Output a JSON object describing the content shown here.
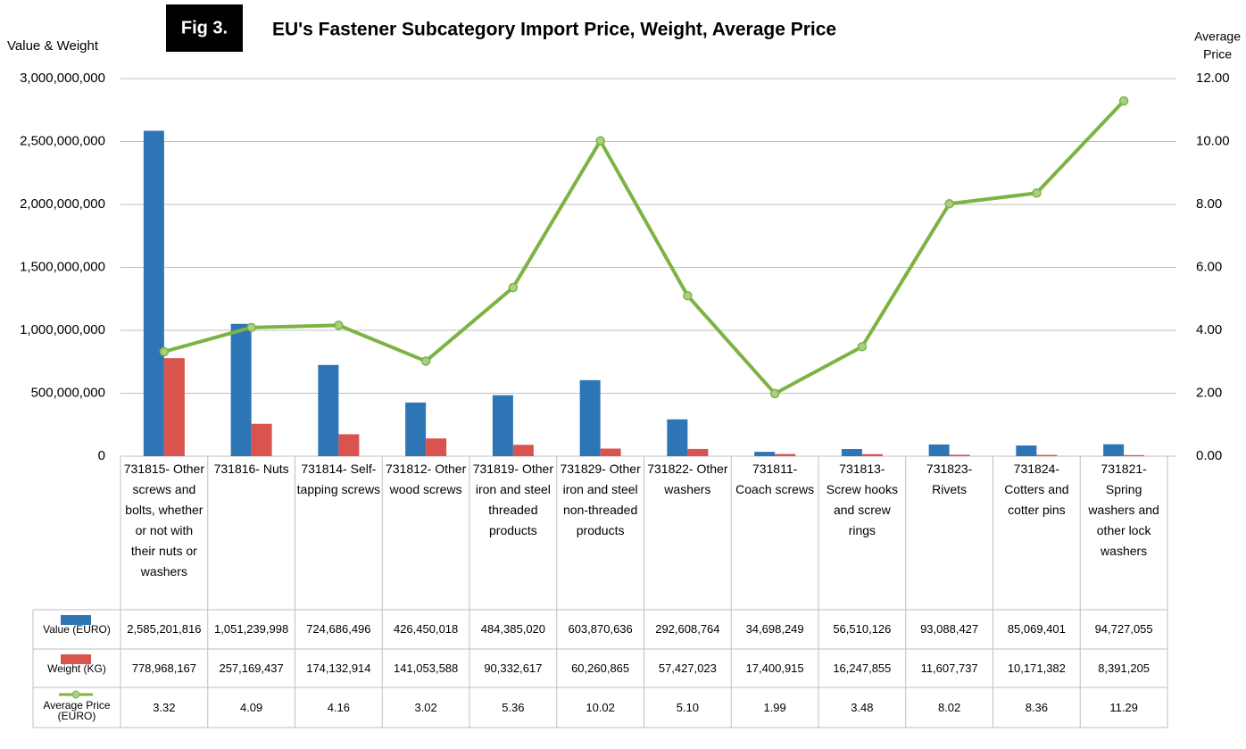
{
  "chart_data": {
    "type": "bar-line",
    "figure_label": "Fig 3.",
    "title": "EU's Fastener Subcategory Import Price, Weight, Average Price",
    "ylabel": "Value & Weight",
    "y2label": "Average Price",
    "categories": [
      "731815- Other screws and bolts, whether or not with their nuts or washers",
      "731816- Nuts",
      "731814- Self-tapping screws",
      "731812- Other wood screws",
      "731819- Other iron and steel threaded products",
      "731829- Other iron and steel non-threaded products",
      "731822- Other washers",
      "731811- Coach screws",
      "731813- Screw hooks and screw rings",
      "731823- Rivets",
      "731824- Cotters and cotter pins",
      "731821- Spring washers and other lock washers"
    ],
    "series": [
      {
        "name": "Value (EURO)",
        "color": "#2e75b6",
        "type": "bar",
        "values": [
          2585201816,
          1051239998,
          724686496,
          426450018,
          484385020,
          603870636,
          292608764,
          34698249,
          56510126,
          93088427,
          85069401,
          94727055
        ],
        "value_labels": [
          "2,585,201,816",
          "1,051,239,998",
          "724,686,496",
          "426,450,018",
          "484,385,020",
          "603,870,636",
          "292,608,764",
          "34,698,249",
          "56,510,126",
          "93,088,427",
          "85,069,401",
          "94,727,055"
        ]
      },
      {
        "name": "Weight (KG)",
        "color": "#d9534f",
        "type": "bar",
        "values": [
          778968167,
          257169437,
          174132914,
          141053588,
          90332617,
          60260865,
          57427023,
          17400915,
          16247855,
          11607737,
          10171382,
          8391205
        ],
        "value_labels": [
          "778,968,167",
          "257,169,437",
          "174,132,914",
          "141,053,588",
          "90,332,617",
          "60,260,865",
          "57,427,023",
          "17,400,915",
          "16,247,855",
          "11,607,737",
          "10,171,382",
          "8,391,205"
        ]
      },
      {
        "name": "Average Price (EURO)",
        "color": "#7cb342",
        "type": "line",
        "axis": "y2",
        "values": [
          3.32,
          4.09,
          4.16,
          3.02,
          5.36,
          10.02,
          5.1,
          1.99,
          3.48,
          8.02,
          8.36,
          11.29
        ],
        "value_labels": [
          "3.32",
          "4.09",
          "4.16",
          "3.02",
          "5.36",
          "10.02",
          "5.10",
          "1.99",
          "3.48",
          "8.02",
          "8.36",
          "11.29"
        ]
      }
    ],
    "ylim": [
      0,
      3000000000
    ],
    "yticks": [
      0,
      {
        "value": 500000000,
        "label": "500,000,000"
      },
      {
        "value": 1000000000,
        "label": "1,000,000,000"
      },
      {
        "value": 1500000000,
        "label": "1,500,000,000"
      },
      {
        "value": 2000000000,
        "label": "2,000,000,000"
      },
      {
        "value": 2500000000,
        "label": "2,500,000,000"
      },
      {
        "value": 3000000000,
        "label": "3,000,000,000"
      }
    ],
    "y2lim": [
      0,
      12
    ],
    "y2ticks": [
      {
        "value": 0,
        "label": "0.00"
      },
      {
        "value": 2,
        "label": "2.00"
      },
      {
        "value": 4,
        "label": "4.00"
      },
      {
        "value": 6,
        "label": "6.00"
      },
      {
        "value": 8,
        "label": "8.00"
      },
      {
        "value": 10,
        "label": "10.00"
      },
      {
        "value": 12,
        "label": "12.00"
      }
    ],
    "grid": true
  }
}
